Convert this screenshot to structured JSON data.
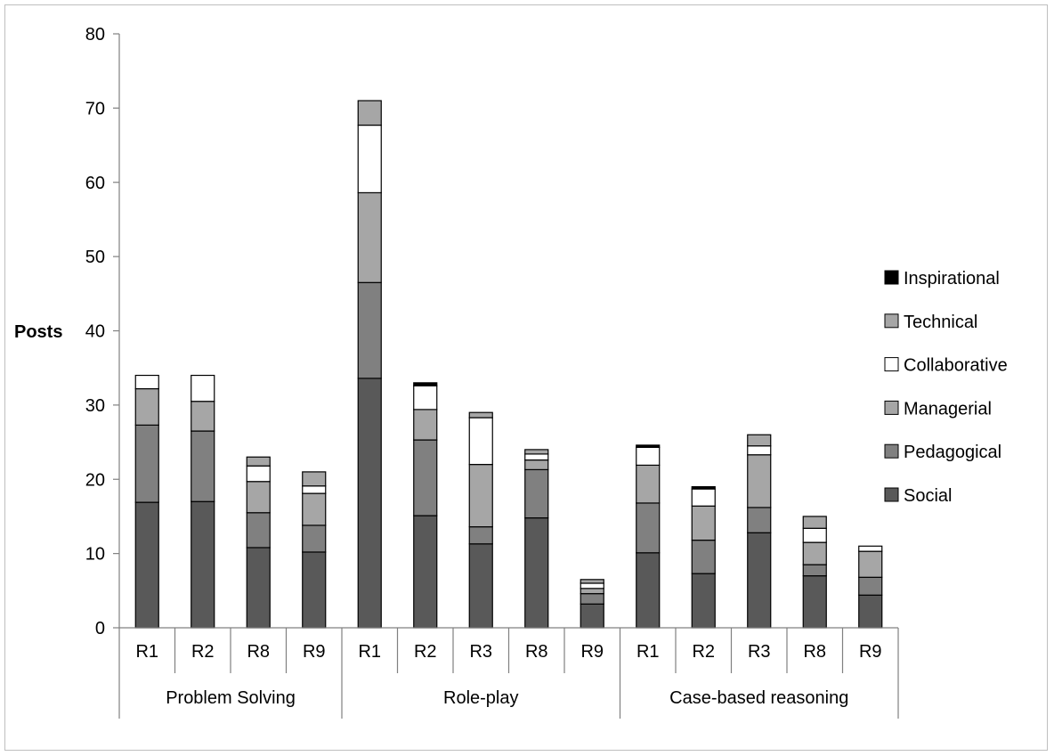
{
  "chart_data": {
    "type": "bar",
    "stacked": true,
    "title": "",
    "xlabel": "",
    "ylabel": "Posts",
    "ylim": [
      0,
      80
    ],
    "y_ticks": [
      0,
      10,
      20,
      30,
      40,
      50,
      60,
      70,
      80
    ],
    "grid": false,
    "legend_position": "right",
    "groups": [
      {
        "label": "Problem Solving",
        "categories": [
          "R1",
          "R2",
          "R8",
          "R9"
        ]
      },
      {
        "label": "Role-play",
        "categories": [
          "R1",
          "R2",
          "R3",
          "R8",
          "R9"
        ]
      },
      {
        "label": "Case-based reasoning",
        "categories": [
          "R1",
          "R2",
          "R3",
          "R8",
          "R9"
        ]
      }
    ],
    "categories": [
      "R1",
      "R2",
      "R8",
      "R9",
      "R1",
      "R2",
      "R3",
      "R8",
      "R9",
      "R1",
      "R2",
      "R3",
      "R8",
      "R9"
    ],
    "series": [
      {
        "name": "Social",
        "color": "#595959",
        "values": [
          16.9,
          17,
          10.8,
          10.2,
          33.6,
          15.1,
          11.3,
          14.8,
          3.2,
          10.1,
          7.3,
          12.8,
          7,
          4.4
        ]
      },
      {
        "name": "Pedagogical",
        "color": "#808080",
        "values": [
          10.4,
          9.5,
          4.7,
          3.6,
          12.9,
          10.2,
          2.3,
          6.5,
          1.4,
          6.7,
          4.5,
          3.4,
          1.5,
          2.4
        ]
      },
      {
        "name": "Managerial",
        "color": "#a6a6a6",
        "values": [
          4.9,
          4,
          4.2,
          4.3,
          12.1,
          4.1,
          8.4,
          1.3,
          0.7,
          5.1,
          4.6,
          7.1,
          3,
          3.5
        ]
      },
      {
        "name": "Collaborative",
        "color": "#ffffff",
        "values": [
          1.8,
          3.5,
          2.1,
          1,
          9.1,
          3.2,
          6.3,
          0.8,
          0.7,
          2.4,
          2.3,
          1.2,
          1.9,
          0.7
        ]
      },
      {
        "name": "Technical",
        "color": "#a6a6a6",
        "values": [
          0,
          0,
          1.2,
          1.9,
          3.3,
          0,
          0.7,
          0.6,
          0.5,
          0,
          0,
          1.5,
          1.6,
          0
        ]
      },
      {
        "name": "Inspirational",
        "color": "#000000",
        "values": [
          0,
          0,
          0,
          0,
          0,
          0.4,
          0,
          0,
          0,
          0.3,
          0.3,
          0,
          0,
          0
        ]
      }
    ],
    "legend_order": [
      "Inspirational",
      "Technical",
      "Collaborative",
      "Managerial",
      "Pedagogical",
      "Social"
    ]
  }
}
